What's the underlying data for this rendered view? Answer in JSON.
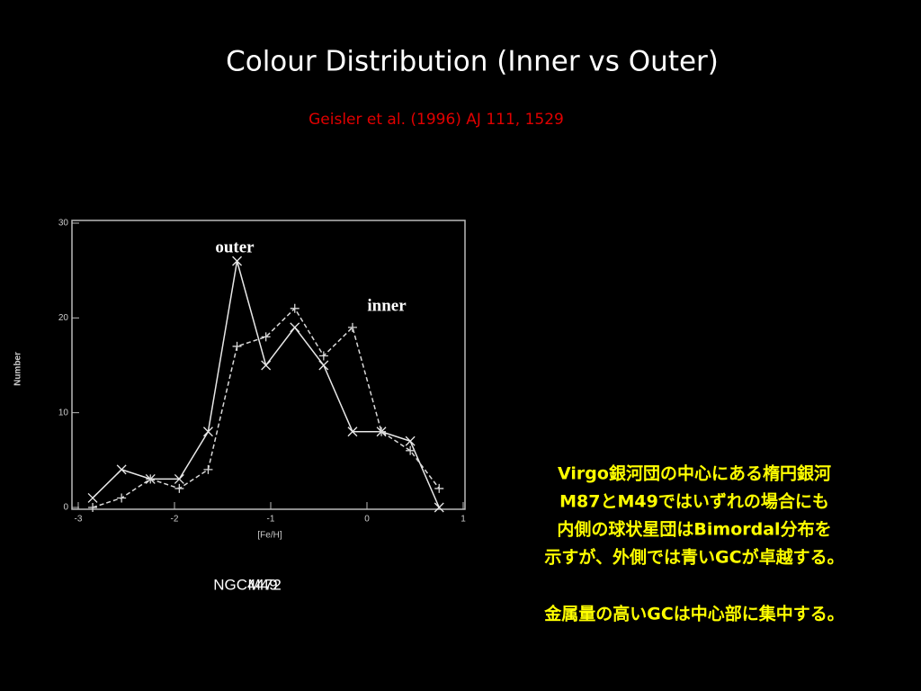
{
  "slide": {
    "title": "Colour Distribution (Inner vs Outer)",
    "citation": "Geisler et al. (1996) AJ 111, 1529",
    "galaxy_names": [
      "NGC4472",
      "M49"
    ],
    "notes": [
      "Virgo銀河団の中心にある楕円銀河",
      "M87とM49ではいずれの場合にも",
      "内側の球状星団はBimordal分布を",
      "示すが、外側では青いGCが卓越する。",
      "金属量の高いGCは中心部に集中する。"
    ]
  },
  "chart_data": {
    "type": "line",
    "xlabel": "[Fe/H]",
    "ylabel": "Number",
    "x": [
      -2.85,
      -2.55,
      -2.25,
      -1.95,
      -1.65,
      -1.35,
      -1.05,
      -0.75,
      -0.45,
      -0.15,
      0.15,
      0.45,
      0.75
    ],
    "series": [
      {
        "name": "outer",
        "color": "#e8e8e8",
        "line_style": "solid",
        "marker": "x",
        "values": [
          1,
          4,
          3,
          3,
          8,
          26,
          15,
          19,
          15,
          8,
          8,
          7,
          0
        ]
      },
      {
        "name": "inner",
        "color": "#d8d8d8",
        "line_style": "dashed",
        "marker": "+",
        "values": [
          0,
          1,
          3,
          2,
          4,
          17,
          18,
          21,
          16,
          19,
          8,
          6,
          2
        ]
      }
    ],
    "xlim": [
      -3,
      1
    ],
    "ylim": [
      0,
      30
    ],
    "xticks": [
      -3,
      -2,
      -1,
      0,
      1
    ],
    "yticks": [
      0,
      10,
      20,
      30
    ]
  }
}
